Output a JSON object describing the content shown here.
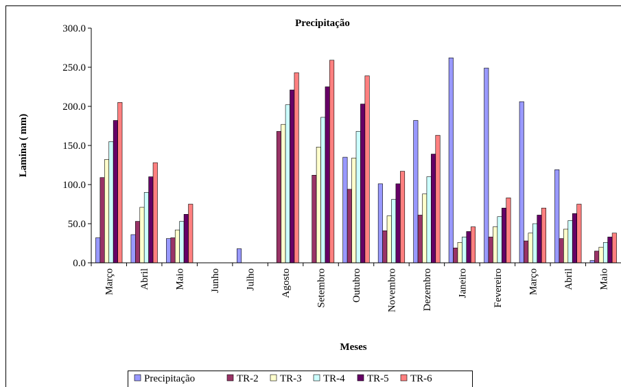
{
  "chart_data": {
    "type": "bar",
    "title": "Precipitação",
    "x_label": "Meses",
    "y_label": "Lamina ( mm)",
    "categories": [
      "Março",
      "Abril",
      "Maio",
      "Junho",
      "Julho",
      "Agosto",
      "Setembro",
      "Outubro",
      "Novembro",
      "Dezembro",
      "Janeiro",
      "Fevereiro",
      "Março",
      "Abril",
      "Maio"
    ],
    "series": [
      {
        "name": "Precipitação",
        "color": "#9999ff",
        "values": [
          32,
          36,
          31,
          0,
          18,
          0,
          0,
          135,
          101,
          182,
          262,
          249,
          206,
          119,
          3
        ]
      },
      {
        "name": "TR-2",
        "color": "#993366",
        "values": [
          109,
          53,
          32,
          0,
          0,
          168,
          112,
          94,
          41,
          61,
          19,
          33,
          28,
          31,
          15
        ]
      },
      {
        "name": "TR-3",
        "color": "#ffffcc",
        "values": [
          132,
          71,
          42,
          0,
          0,
          177,
          148,
          134,
          60,
          88,
          26,
          46,
          38,
          43,
          20
        ]
      },
      {
        "name": "TR-4",
        "color": "#ccffff",
        "values": [
          155,
          90,
          53,
          0,
          0,
          202,
          186,
          168,
          81,
          110,
          33,
          59,
          50,
          54,
          26
        ]
      },
      {
        "name": "TR-5",
        "color": "#660066",
        "values": [
          182,
          110,
          62,
          0,
          0,
          221,
          225,
          203,
          101,
          139,
          40,
          70,
          61,
          63,
          33
        ]
      },
      {
        "name": "TR-6",
        "color": "#ff8080",
        "values": [
          205,
          128,
          75,
          0,
          0,
          243,
          259,
          239,
          117,
          163,
          46,
          83,
          70,
          75,
          38
        ]
      }
    ],
    "ylim": [
      0,
      300
    ],
    "yticks": [
      {
        "value": 0,
        "label": "0.0"
      },
      {
        "value": 50,
        "label": "50.0"
      },
      {
        "value": 100,
        "label": "100.0"
      },
      {
        "value": 150,
        "label": "150.0"
      },
      {
        "value": 200,
        "label": "200.0"
      },
      {
        "value": 250,
        "label": "250.0"
      },
      {
        "value": 300,
        "label": "300.0"
      }
    ],
    "legend": "bottom"
  }
}
